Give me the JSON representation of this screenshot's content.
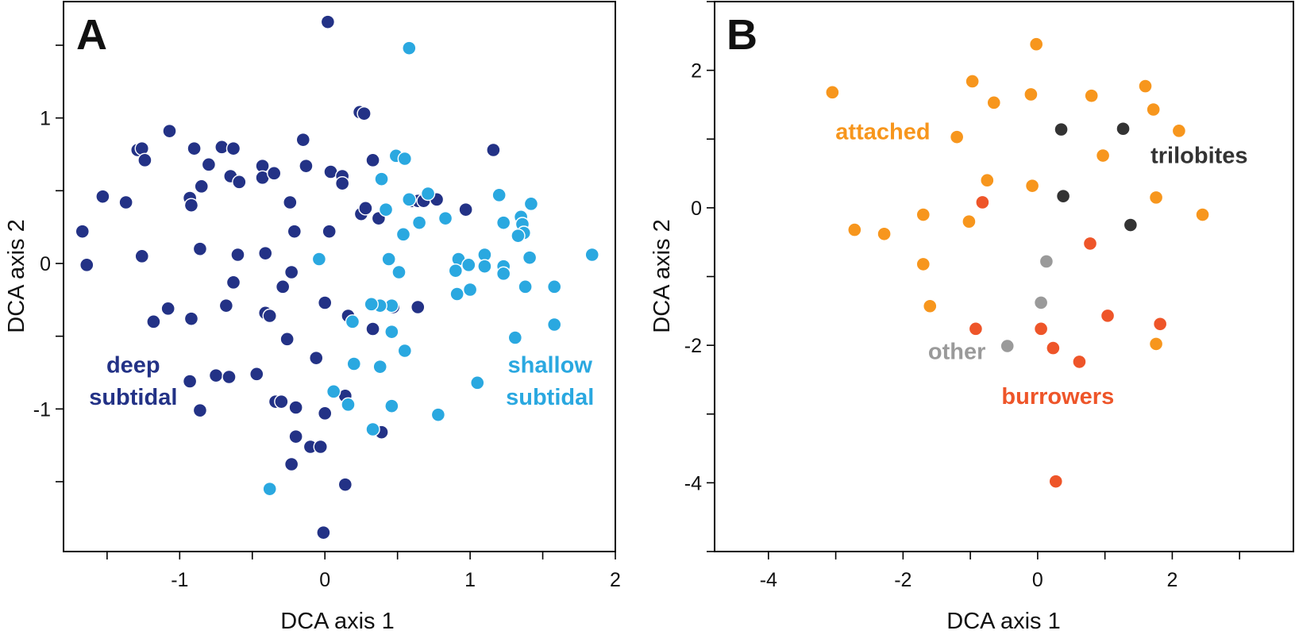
{
  "chart_data": [
    {
      "panel": "A",
      "type": "scatter",
      "xlabel": "DCA axis 1",
      "ylabel": "DCA axis 2",
      "xlim": [
        -1.8,
        2.0
      ],
      "ylim": [
        -1.98,
        1.8
      ],
      "xticks": [
        -1.5,
        -1,
        -0.5,
        0,
        0.5,
        1,
        1.5,
        2
      ],
      "xtick_labels": [
        "",
        "-1",
        "",
        "0",
        "",
        "1",
        "",
        "2"
      ],
      "yticks": [
        -1.5,
        -1,
        -0.5,
        0,
        0.5,
        1,
        1.5
      ],
      "ytick_labels": [
        "",
        "-1",
        "",
        "0",
        "",
        "1",
        ""
      ],
      "labels": [
        {
          "text": "deep",
          "series": 0,
          "x": -1.32,
          "y": -0.75
        },
        {
          "text": "subtidal",
          "series": 0,
          "x": -1.32,
          "y": -0.97
        },
        {
          "text": "shallow",
          "series": 1,
          "x": 1.55,
          "y": -0.75
        },
        {
          "text": "subtidal",
          "series": 1,
          "x": 1.55,
          "y": -0.97
        }
      ],
      "series": [
        {
          "name": "deep subtidal",
          "color": "#233286",
          "points": [
            [
              0.02,
              1.66
            ],
            [
              -1.67,
              0.22
            ],
            [
              -1.64,
              -0.01
            ],
            [
              -1.53,
              0.46
            ],
            [
              -1.37,
              0.42
            ],
            [
              -1.29,
              0.78
            ],
            [
              -1.26,
              0.79
            ],
            [
              -1.24,
              0.71
            ],
            [
              -1.26,
              0.05
            ],
            [
              -1.18,
              -0.4
            ],
            [
              -1.07,
              0.91
            ],
            [
              -1.08,
              -0.31
            ],
            [
              -0.93,
              0.45
            ],
            [
              -0.92,
              0.4
            ],
            [
              -0.92,
              -0.38
            ],
            [
              -0.93,
              -0.81
            ],
            [
              -0.9,
              0.79
            ],
            [
              -0.86,
              0.1
            ],
            [
              -0.85,
              0.53
            ],
            [
              -0.86,
              -1.01
            ],
            [
              -0.8,
              0.68
            ],
            [
              -0.75,
              -0.77
            ],
            [
              -0.71,
              0.8
            ],
            [
              -0.68,
              -0.29
            ],
            [
              -0.66,
              -0.78
            ],
            [
              -0.65,
              0.6
            ],
            [
              -0.63,
              0.79
            ],
            [
              -0.63,
              -0.13
            ],
            [
              -0.6,
              0.06
            ],
            [
              -0.59,
              0.56
            ],
            [
              -0.47,
              -0.76
            ],
            [
              -0.43,
              0.67
            ],
            [
              -0.43,
              0.59
            ],
            [
              -0.41,
              0.07
            ],
            [
              -0.41,
              -0.34
            ],
            [
              -0.38,
              -0.36
            ],
            [
              -0.35,
              0.62
            ],
            [
              -0.34,
              -0.95
            ],
            [
              -0.3,
              -0.95
            ],
            [
              -0.29,
              -0.16
            ],
            [
              -0.26,
              -0.52
            ],
            [
              -0.24,
              0.42
            ],
            [
              -0.23,
              -0.06
            ],
            [
              -0.23,
              -1.38
            ],
            [
              -0.21,
              0.22
            ],
            [
              -0.2,
              -0.99
            ],
            [
              -0.2,
              -1.19
            ],
            [
              -0.15,
              0.85
            ],
            [
              -0.13,
              0.67
            ],
            [
              -0.1,
              -1.26
            ],
            [
              -0.06,
              -0.65
            ],
            [
              -0.03,
              -1.26
            ],
            [
              0.0,
              -1.03
            ],
            [
              -0.01,
              -1.85
            ],
            [
              0.0,
              -0.27
            ],
            [
              0.03,
              0.22
            ],
            [
              0.04,
              0.63
            ],
            [
              0.12,
              0.6
            ],
            [
              0.12,
              0.55
            ],
            [
              0.14,
              -0.91
            ],
            [
              0.14,
              -1.52
            ],
            [
              0.16,
              -0.36
            ],
            [
              0.24,
              1.04
            ],
            [
              0.27,
              1.03
            ],
            [
              0.25,
              0.34
            ],
            [
              0.28,
              0.38
            ],
            [
              0.33,
              0.71
            ],
            [
              0.33,
              -0.45
            ],
            [
              0.37,
              0.31
            ],
            [
              0.39,
              -1.16
            ],
            [
              0.47,
              -0.3
            ],
            [
              0.6,
              0.43
            ],
            [
              0.64,
              0.43
            ],
            [
              0.68,
              0.43
            ],
            [
              0.64,
              -0.3
            ],
            [
              0.77,
              0.44
            ],
            [
              0.97,
              0.37
            ],
            [
              1.16,
              0.78
            ]
          ]
        },
        {
          "name": "shallow subtidal",
          "color": "#2aa8e0",
          "points": [
            [
              0.58,
              1.48
            ],
            [
              0.49,
              0.74
            ],
            [
              0.55,
              0.72
            ],
            [
              0.39,
              0.58
            ],
            [
              0.42,
              0.37
            ],
            [
              0.58,
              0.44
            ],
            [
              0.71,
              0.48
            ],
            [
              0.65,
              0.28
            ],
            [
              0.54,
              0.2
            ],
            [
              0.83,
              0.31
            ],
            [
              1.2,
              0.47
            ],
            [
              1.23,
              0.28
            ],
            [
              1.35,
              0.32
            ],
            [
              1.36,
              0.27
            ],
            [
              1.37,
              0.21
            ],
            [
              1.33,
              0.19
            ],
            [
              1.42,
              0.41
            ],
            [
              1.84,
              0.06
            ],
            [
              1.1,
              0.06
            ],
            [
              0.92,
              0.03
            ],
            [
              0.9,
              -0.05
            ],
            [
              0.99,
              -0.01
            ],
            [
              1.1,
              -0.02
            ],
            [
              1.23,
              -0.02
            ],
            [
              1.23,
              -0.07
            ],
            [
              1.41,
              0.04
            ],
            [
              1.58,
              -0.16
            ],
            [
              1.38,
              -0.16
            ],
            [
              1.58,
              -0.42
            ],
            [
              1.31,
              -0.51
            ],
            [
              1.0,
              -0.18
            ],
            [
              0.91,
              -0.21
            ],
            [
              0.44,
              0.03
            ],
            [
              0.51,
              -0.06
            ],
            [
              0.46,
              -0.29
            ],
            [
              0.38,
              -0.29
            ],
            [
              0.32,
              -0.28
            ],
            [
              0.46,
              -0.47
            ],
            [
              0.19,
              -0.4
            ],
            [
              0.2,
              -0.69
            ],
            [
              0.38,
              -0.71
            ],
            [
              0.55,
              -0.6
            ],
            [
              0.06,
              -0.88
            ],
            [
              0.16,
              -0.97
            ],
            [
              0.46,
              -0.98
            ],
            [
              0.78,
              -1.04
            ],
            [
              0.33,
              -1.14
            ],
            [
              1.05,
              -0.82
            ],
            [
              -0.04,
              0.03
            ],
            [
              -0.38,
              -1.55
            ]
          ]
        }
      ]
    },
    {
      "panel": "B",
      "type": "scatter",
      "xlabel": "DCA axis 1",
      "ylabel": "DCA axis 2",
      "xlim": [
        -4.8,
        3.8
      ],
      "ylim": [
        -5.0,
        3.0
      ],
      "xticks": [
        -4,
        -3,
        -2,
        -1,
        0,
        1,
        2,
        3
      ],
      "xtick_labels": [
        "-4",
        "",
        "-2",
        "",
        "0",
        "",
        "2",
        ""
      ],
      "yticks": [
        -5,
        -4,
        -3,
        -2,
        -1,
        0,
        1,
        2,
        3
      ],
      "ytick_labels": [
        "",
        "-4",
        "",
        "-2",
        "",
        "0",
        "",
        "2",
        ""
      ],
      "labels": [
        {
          "text": "attached",
          "series": 0,
          "x": -2.3,
          "y": 1.0
        },
        {
          "text": "trilobites",
          "series": 1,
          "x": 2.4,
          "y": 0.65
        },
        {
          "text": "other",
          "series": 2,
          "x": -1.2,
          "y": -2.2
        },
        {
          "text": "burrowers",
          "series": 3,
          "x": 0.3,
          "y": -2.85
        }
      ],
      "series": [
        {
          "name": "attached",
          "color": "#f7961d",
          "points": [
            [
              -0.02,
              2.38
            ],
            [
              -3.05,
              1.68
            ],
            [
              -0.97,
              1.84
            ],
            [
              -0.1,
              1.65
            ],
            [
              0.8,
              1.63
            ],
            [
              1.6,
              1.77
            ],
            [
              -0.65,
              1.53
            ],
            [
              1.72,
              1.43
            ],
            [
              -1.2,
              1.03
            ],
            [
              2.1,
              1.12
            ],
            [
              0.97,
              0.76
            ],
            [
              -0.75,
              0.4
            ],
            [
              -0.08,
              0.32
            ],
            [
              1.76,
              0.15
            ],
            [
              2.45,
              -0.1
            ],
            [
              -1.7,
              -0.1
            ],
            [
              -1.02,
              -0.2
            ],
            [
              -2.72,
              -0.32
            ],
            [
              -2.28,
              -0.38
            ],
            [
              -1.7,
              -0.82
            ],
            [
              -1.6,
              -1.43
            ],
            [
              1.76,
              -1.98
            ]
          ]
        },
        {
          "name": "trilobites",
          "color": "#333333",
          "points": [
            [
              0.35,
              1.14
            ],
            [
              1.27,
              1.15
            ],
            [
              0.38,
              0.17
            ],
            [
              1.38,
              -0.25
            ]
          ]
        },
        {
          "name": "other",
          "color": "#9a9a9a",
          "points": [
            [
              0.13,
              -0.78
            ],
            [
              0.05,
              -1.38
            ],
            [
              -0.45,
              -2.01
            ]
          ]
        },
        {
          "name": "burrowers",
          "color": "#ee5529",
          "points": [
            [
              -0.82,
              0.08
            ],
            [
              0.78,
              -0.52
            ],
            [
              1.04,
              -1.57
            ],
            [
              1.82,
              -1.69
            ],
            [
              -0.92,
              -1.76
            ],
            [
              0.05,
              -1.76
            ],
            [
              0.23,
              -2.04
            ],
            [
              0.62,
              -2.24
            ],
            [
              0.27,
              -3.98
            ]
          ]
        }
      ]
    }
  ]
}
